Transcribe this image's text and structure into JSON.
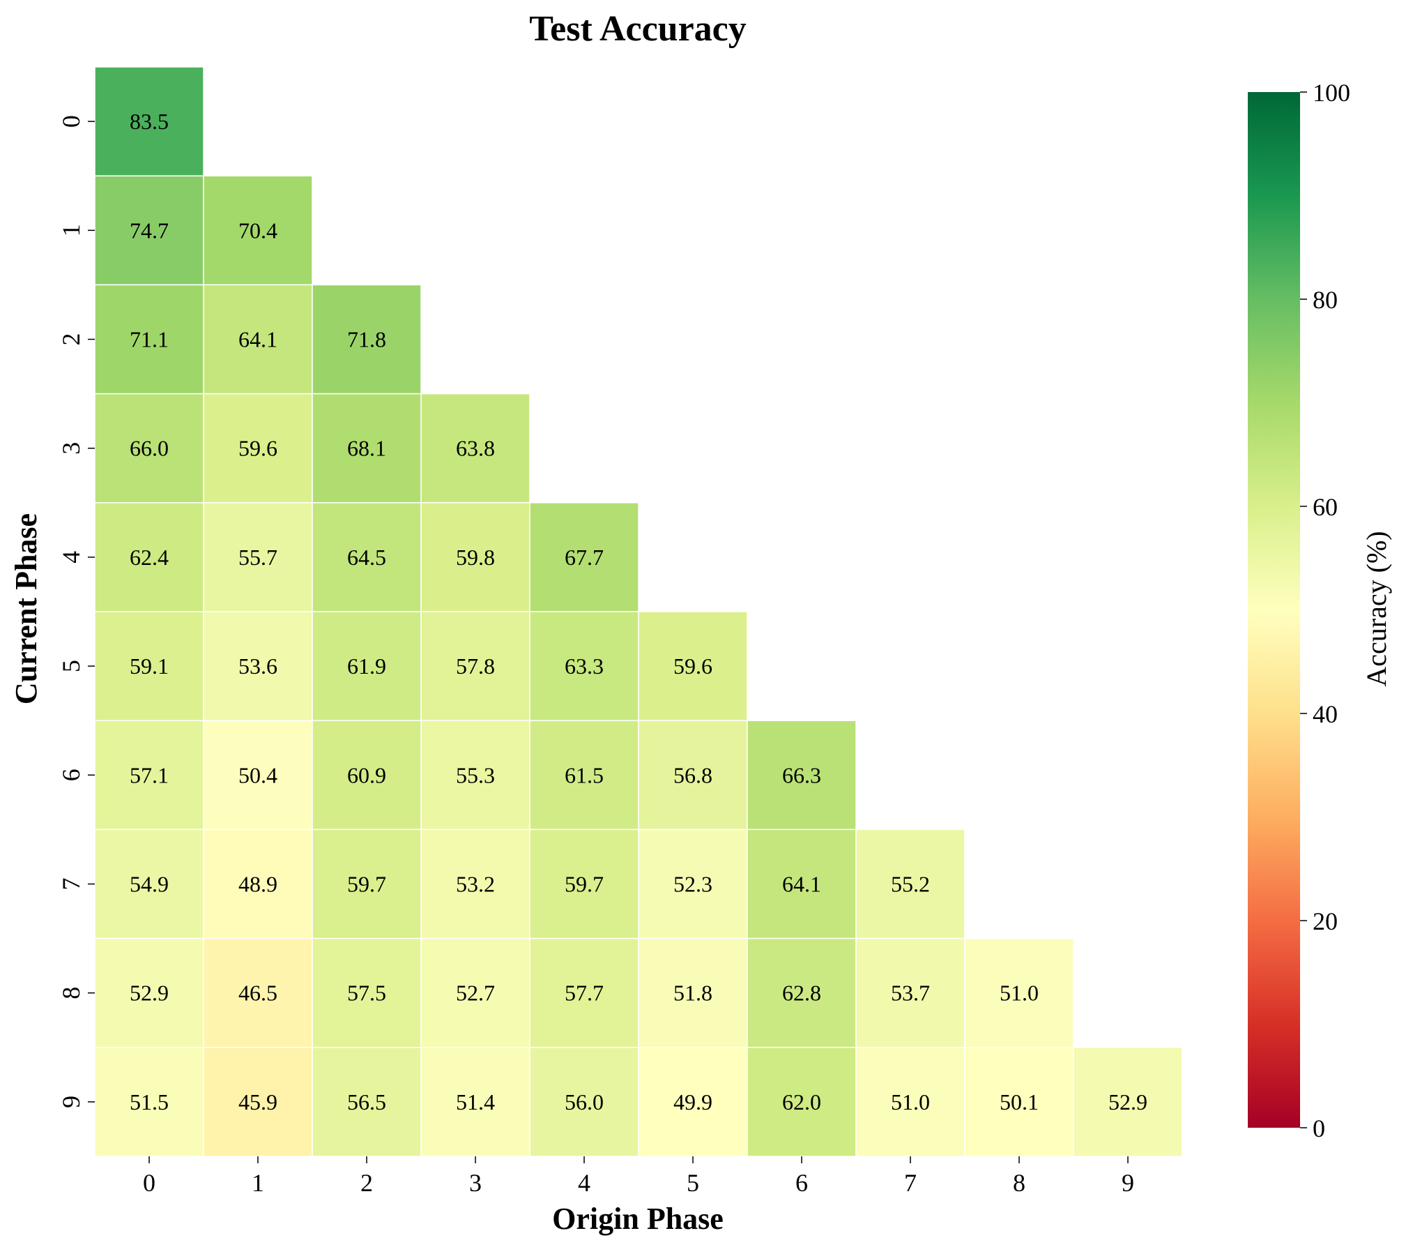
{
  "chart_data": {
    "type": "heatmap",
    "title": "Test Accuracy",
    "xlabel": "Origin Phase",
    "ylabel": "Current Phase",
    "x_categories": [
      "0",
      "1",
      "2",
      "3",
      "4",
      "5",
      "6",
      "7",
      "8",
      "9"
    ],
    "y_categories": [
      "0",
      "1",
      "2",
      "3",
      "4",
      "5",
      "6",
      "7",
      "8",
      "9"
    ],
    "values": [
      [
        83.5
      ],
      [
        74.7,
        70.4
      ],
      [
        71.1,
        64.1,
        71.8
      ],
      [
        66.0,
        59.6,
        68.1,
        63.8
      ],
      [
        62.4,
        55.7,
        64.5,
        59.8,
        67.7
      ],
      [
        59.1,
        53.6,
        61.9,
        57.8,
        63.3,
        59.6
      ],
      [
        57.1,
        50.4,
        60.9,
        55.3,
        61.5,
        56.8,
        66.3
      ],
      [
        54.9,
        48.9,
        59.7,
        53.2,
        59.7,
        52.3,
        64.1,
        55.2
      ],
      [
        52.9,
        46.5,
        57.5,
        52.7,
        57.7,
        51.8,
        62.8,
        53.7,
        51.0
      ],
      [
        51.5,
        45.9,
        56.5,
        51.4,
        56.0,
        49.9,
        62.0,
        51.0,
        50.1,
        52.9
      ]
    ],
    "colorbar": {
      "label": "Accuracy (%)",
      "range": [
        0,
        100
      ],
      "ticks": [
        "0",
        "20",
        "40",
        "60",
        "80",
        "100"
      ],
      "colormap": "RdYlGn"
    },
    "grid": false,
    "legend": "colorbar-right"
  }
}
